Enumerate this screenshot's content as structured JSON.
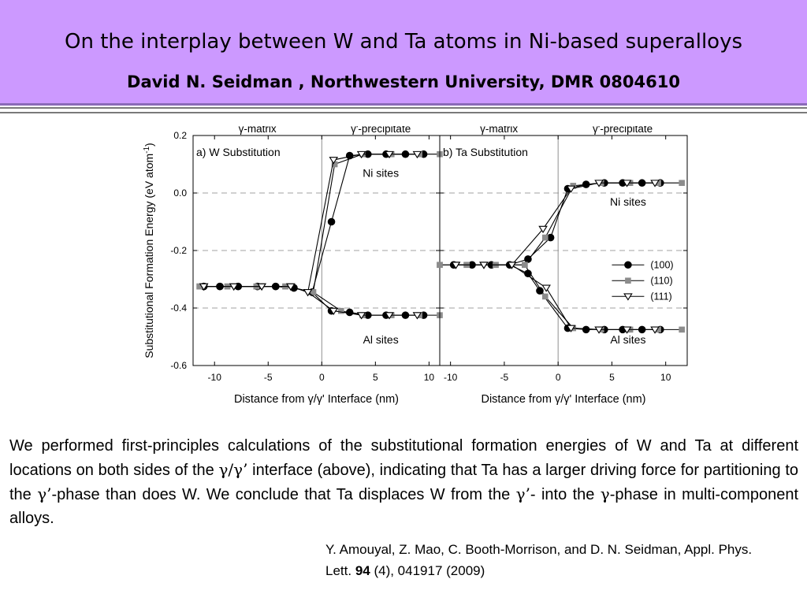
{
  "header": {
    "title": "On the interplay between W and Ta atoms in Ni-based superalloys",
    "subtitle": "David N. Seidman , Northwestern University, DMR 0804610"
  },
  "colors": {
    "header_bg": "#cc99ff",
    "series_100": "#000000",
    "series_110": "#8c8c8c",
    "series_111": "#000000"
  },
  "chart_data": [
    {
      "type": "line",
      "panel_label": "a) W Substitution",
      "region_labels": [
        "γ-matrix",
        "γ'-precipitate"
      ],
      "branch_labels": [
        "Ni sites",
        "Al sites"
      ],
      "xlabel": "Distance from γ/γ' Interface (nm)",
      "ylabel": "Substitutional Formation Energy (eV atom",
      "ylabel_sup": "-1",
      "ylabel_close": ")",
      "xlim": [
        -12,
        11
      ],
      "ylim": [
        -0.6,
        0.2
      ],
      "xticks": [
        -10,
        -5,
        0,
        5,
        10
      ],
      "yticks": [
        -0.6,
        -0.4,
        -0.2,
        0.0,
        0.2
      ],
      "ytick_labels": [
        "-0.6",
        "-0.4",
        "-0.2",
        "0.0",
        "0.2"
      ],
      "dashed_y": [
        0.0,
        -0.2,
        -0.4
      ],
      "interface_x": 0,
      "series": [
        {
          "name": "(100)",
          "marker": "circle",
          "ni": {
            "x": [
              -11,
              -9.5,
              -7.8,
              -6,
              -4.3,
              -2.6,
              -0.9,
              0.9,
              2.6,
              4.3,
              6,
              7.8,
              9.5
            ],
            "y": [
              -0.325,
              -0.325,
              -0.325,
              -0.325,
              -0.325,
              -0.33,
              -0.345,
              -0.1,
              0.13,
              0.135,
              0.135,
              0.135,
              0.135
            ]
          },
          "al": {
            "x": [
              -11,
              -9.5,
              -7.8,
              -6,
              -4.3,
              -2.6,
              -0.9,
              0.9,
              2.6,
              4.3,
              6,
              7.8,
              9.5
            ],
            "y": [
              -0.325,
              -0.325,
              -0.325,
              -0.325,
              -0.325,
              -0.33,
              -0.345,
              -0.41,
              -0.415,
              -0.425,
              -0.425,
              -0.425,
              -0.425
            ]
          }
        },
        {
          "name": "(110)",
          "marker": "square",
          "ni": {
            "x": [
              -11.4,
              -8.8,
              -6.1,
              -3.4,
              -0.8,
              1.2,
              3.8,
              6.5,
              9.1,
              11
            ],
            "y": [
              -0.325,
              -0.325,
              -0.325,
              -0.325,
              -0.345,
              0.1,
              0.135,
              0.135,
              0.135,
              0.135
            ]
          },
          "al": {
            "x": [
              -11.4,
              -8.8,
              -6.1,
              -3.4,
              -0.8,
              1.8,
              3.8,
              6.5,
              9.1,
              11
            ],
            "y": [
              -0.325,
              -0.325,
              -0.325,
              -0.325,
              -0.345,
              -0.41,
              -0.425,
              -0.425,
              -0.425,
              -0.425
            ]
          }
        },
        {
          "name": "(111)",
          "marker": "triangle-down",
          "ni": {
            "x": [
              -11,
              -8.2,
              -5.6,
              -2.9,
              -1.3,
              1.1,
              3.7,
              6.3,
              8.9
            ],
            "y": [
              -0.325,
              -0.325,
              -0.325,
              -0.325,
              -0.345,
              0.115,
              0.135,
              0.135,
              0.135
            ]
          },
          "al": {
            "x": [
              -11,
              -8.2,
              -5.6,
              -2.9,
              -1.3,
              1.1,
              3.7,
              6.3,
              8.9
            ],
            "y": [
              -0.325,
              -0.325,
              -0.325,
              -0.325,
              -0.345,
              -0.41,
              -0.425,
              -0.425,
              -0.425
            ]
          }
        }
      ]
    },
    {
      "type": "line",
      "panel_label": "b) Ta Substitution",
      "region_labels": [
        "γ-matrix",
        "γ'-precipitate"
      ],
      "branch_labels": [
        "Ni sites",
        "Al sites"
      ],
      "xlabel": "Distance from γ/γ' Interface (nm)",
      "xlim": [
        -11,
        12
      ],
      "ylim": [
        -0.6,
        0.2
      ],
      "xticks": [
        -10,
        -5,
        0,
        5,
        10
      ],
      "dashed_y": [
        0.0,
        -0.2,
        -0.4
      ],
      "interface_x": 0,
      "legend_position": "center-right",
      "series": [
        {
          "name": "(100)",
          "marker": "circle",
          "ni": {
            "x": [
              -9.7,
              -8,
              -6.2,
              -4.5,
              -2.8,
              -0.7,
              0.9,
              2.6,
              4.3,
              6,
              7.8,
              9.5
            ],
            "y": [
              -0.25,
              -0.25,
              -0.25,
              -0.25,
              -0.23,
              -0.155,
              0.015,
              0.03,
              0.035,
              0.035,
              0.035,
              0.035
            ]
          },
          "al": {
            "x": [
              -9.7,
              -8,
              -6.2,
              -4.5,
              -2.8,
              -1.7,
              0.9,
              2.6,
              4.3,
              6,
              7.8,
              9.5
            ],
            "y": [
              -0.25,
              -0.25,
              -0.25,
              -0.25,
              -0.28,
              -0.34,
              -0.47,
              -0.475,
              -0.475,
              -0.475,
              -0.475,
              -0.475
            ]
          }
        },
        {
          "name": "(110)",
          "marker": "square",
          "ni": {
            "x": [
              -11,
              -8.5,
              -5.8,
              -3.1,
              -1.2,
              1.4,
              4,
              6.7,
              9.3,
              11.5
            ],
            "y": [
              -0.25,
              -0.25,
              -0.25,
              -0.25,
              -0.155,
              0.025,
              0.035,
              0.035,
              0.035,
              0.035
            ]
          },
          "al": {
            "x": [
              -11,
              -8.5,
              -5.8,
              -3.1,
              -1.2,
              1.4,
              4,
              6.7,
              9.3,
              11.5
            ],
            "y": [
              -0.25,
              -0.25,
              -0.25,
              -0.25,
              -0.36,
              -0.47,
              -0.475,
              -0.475,
              -0.475,
              -0.475
            ]
          }
        },
        {
          "name": "(111)",
          "marker": "triangle-down",
          "ni": {
            "x": [
              -9.5,
              -6.9,
              -4.3,
              -1.4,
              1.2,
              3.8,
              6.4,
              9
            ],
            "y": [
              -0.25,
              -0.25,
              -0.25,
              -0.125,
              0.015,
              0.035,
              0.035,
              0.035
            ]
          },
          "al": {
            "x": [
              -9.5,
              -6.9,
              -4.3,
              -1.1,
              1.2,
              3.8,
              6.4,
              9
            ],
            "y": [
              -0.25,
              -0.25,
              -0.25,
              -0.33,
              -0.47,
              -0.475,
              -0.475,
              -0.475
            ]
          }
        }
      ]
    }
  ],
  "body": {
    "p1": "We performed first-principles calculations of the substitutional formation energies of W and Ta at different locations on both sides of the ",
    "g1": "γ/γ’",
    "p2": " interface (above), indicating that Ta has a larger driving force for partitioning to the ",
    "g2": "γ’",
    "p3": "-phase than does W. We conclude that Ta displaces W from the ",
    "g3": "γ’",
    "p4": "- into the ",
    "g4": "γ",
    "p5": "-phase in multi-component alloys."
  },
  "citation": {
    "authors": "Y. Amouyal, Z. Mao, C. Booth-Morrison, and D. N. Seidman, Appl. Phys. Lett. ",
    "volume": "94",
    "rest": " (4), 041917 (2009)"
  }
}
